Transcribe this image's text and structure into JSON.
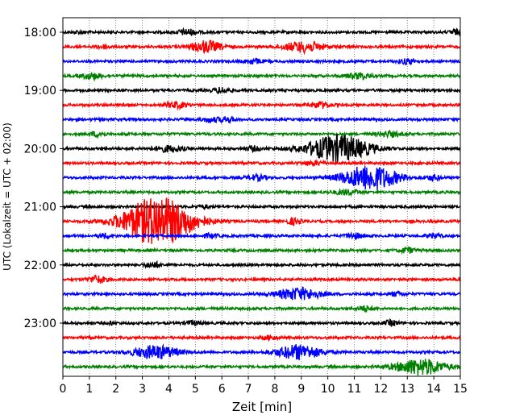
{
  "chart_data": {
    "type": "line",
    "title": "",
    "xlabel": "Zeit  [min]",
    "ylabel": "UTC (Lokalzeit = UTC + 02:00)",
    "xlim": [
      0,
      15
    ],
    "x_ticks": [
      "0",
      "1",
      "2",
      "3",
      "4",
      "5",
      "6",
      "7",
      "8",
      "9",
      "10",
      "11",
      "12",
      "13",
      "14",
      "15"
    ],
    "y_ticks": [
      "18:00",
      "19:00",
      "20:00",
      "21:00",
      "22:00",
      "23:00"
    ],
    "grid": "vertical dotted",
    "trace_interval_min": 15,
    "trace_colors": [
      "#000000",
      "#ff0000",
      "#0000ff",
      "#008000"
    ],
    "traces": [
      {
        "start": "18:00",
        "color": "#000000",
        "bursts": [
          {
            "t": 4.7,
            "amp": 0.4,
            "dur": 0.6
          },
          {
            "t": 14.8,
            "amp": 0.35,
            "dur": 0.3
          },
          {
            "t": 0.6,
            "amp": 0.2,
            "dur": 0.3
          }
        ]
      },
      {
        "start": "18:15",
        "color": "#ff0000",
        "bursts": [
          {
            "t": 5.4,
            "amp": 0.8,
            "dur": 0.9
          },
          {
            "t": 9.1,
            "amp": 0.7,
            "dur": 1.2
          },
          {
            "t": 1.5,
            "amp": 0.25,
            "dur": 0.4
          }
        ]
      },
      {
        "start": "18:30",
        "color": "#0000ff",
        "bursts": [
          {
            "t": 7.2,
            "amp": 0.35,
            "dur": 0.5
          },
          {
            "t": 13.0,
            "amp": 0.35,
            "dur": 0.5
          }
        ]
      },
      {
        "start": "18:45",
        "color": "#008000",
        "bursts": [
          {
            "t": 1.1,
            "amp": 0.4,
            "dur": 0.6
          },
          {
            "t": 11.2,
            "amp": 0.4,
            "dur": 0.7
          }
        ]
      },
      {
        "start": "19:00",
        "color": "#000000",
        "bursts": [
          {
            "t": 6.0,
            "amp": 0.35,
            "dur": 0.5
          }
        ]
      },
      {
        "start": "19:15",
        "color": "#ff0000",
        "bursts": [
          {
            "t": 4.3,
            "amp": 0.4,
            "dur": 0.6
          },
          {
            "t": 9.7,
            "amp": 0.4,
            "dur": 0.6
          }
        ]
      },
      {
        "start": "19:30",
        "color": "#0000ff",
        "bursts": [
          {
            "t": 5.6,
            "amp": 0.3,
            "dur": 0.5
          },
          {
            "t": 6.2,
            "amp": 0.35,
            "dur": 0.4
          }
        ]
      },
      {
        "start": "19:45",
        "color": "#008000",
        "bursts": [
          {
            "t": 1.3,
            "amp": 0.35,
            "dur": 0.4
          },
          {
            "t": 12.3,
            "amp": 0.35,
            "dur": 0.7
          }
        ]
      },
      {
        "start": "20:00",
        "color": "#000000",
        "bursts": [
          {
            "t": 10.4,
            "amp": 1.8,
            "dur": 1.8
          },
          {
            "t": 4.0,
            "amp": 0.4,
            "dur": 0.9
          },
          {
            "t": 7.2,
            "amp": 0.3,
            "dur": 0.4
          }
        ]
      },
      {
        "start": "20:15",
        "color": "#ff0000",
        "bursts": [
          {
            "t": 9.5,
            "amp": 0.25,
            "dur": 0.7
          }
        ]
      },
      {
        "start": "20:30",
        "color": "#0000ff",
        "bursts": [
          {
            "t": 11.6,
            "amp": 1.7,
            "dur": 1.6
          },
          {
            "t": 7.3,
            "amp": 0.35,
            "dur": 0.6
          },
          {
            "t": 14.0,
            "amp": 0.35,
            "dur": 0.4
          }
        ]
      },
      {
        "start": "20:45",
        "color": "#008000",
        "bursts": [
          {
            "t": 10.7,
            "amp": 0.3,
            "dur": 0.8
          }
        ]
      },
      {
        "start": "21:00",
        "color": "#000000",
        "bursts": [
          {
            "t": 5.3,
            "amp": 0.2,
            "dur": 0.4
          }
        ]
      },
      {
        "start": "21:15",
        "color": "#ff0000",
        "bursts": [
          {
            "t": 3.6,
            "amp": 3.4,
            "dur": 2.0
          },
          {
            "t": 8.7,
            "amp": 0.4,
            "dur": 0.4
          }
        ]
      },
      {
        "start": "21:30",
        "color": "#0000ff",
        "bursts": [
          {
            "t": 1.6,
            "amp": 0.3,
            "dur": 0.4
          },
          {
            "t": 5.6,
            "amp": 0.3,
            "dur": 0.4
          },
          {
            "t": 11.0,
            "amp": 0.35,
            "dur": 0.5
          },
          {
            "t": 14.0,
            "amp": 0.3,
            "dur": 0.4
          }
        ]
      },
      {
        "start": "21:45",
        "color": "#008000",
        "bursts": [
          {
            "t": 13.0,
            "amp": 0.35,
            "dur": 0.5
          }
        ]
      },
      {
        "start": "22:00",
        "color": "#000000",
        "bursts": [
          {
            "t": 3.4,
            "amp": 0.35,
            "dur": 0.5
          }
        ]
      },
      {
        "start": "22:15",
        "color": "#ff0000",
        "bursts": [
          {
            "t": 1.3,
            "amp": 0.5,
            "dur": 0.5
          },
          {
            "t": 15.0,
            "amp": 0.3,
            "dur": 0.2
          }
        ]
      },
      {
        "start": "22:30",
        "color": "#0000ff",
        "bursts": [
          {
            "t": 8.9,
            "amp": 0.8,
            "dur": 1.3
          },
          {
            "t": 12.6,
            "amp": 0.25,
            "dur": 0.4
          }
        ]
      },
      {
        "start": "22:45",
        "color": "#008000",
        "bursts": [
          {
            "t": 11.4,
            "amp": 0.35,
            "dur": 0.4
          }
        ]
      },
      {
        "start": "23:00",
        "color": "#000000",
        "bursts": [
          {
            "t": 4.9,
            "amp": 0.3,
            "dur": 0.5
          },
          {
            "t": 12.4,
            "amp": 0.35,
            "dur": 0.4
          },
          {
            "t": 1.8,
            "amp": 0.3,
            "dur": 0.1
          }
        ]
      },
      {
        "start": "23:15",
        "color": "#ff0000",
        "bursts": [
          {
            "t": 7.8,
            "amp": 0.25,
            "dur": 0.5
          }
        ]
      },
      {
        "start": "23:30",
        "color": "#0000ff",
        "bursts": [
          {
            "t": 3.5,
            "amp": 0.9,
            "dur": 1.3
          },
          {
            "t": 8.9,
            "amp": 1.0,
            "dur": 1.3
          }
        ]
      },
      {
        "start": "23:45",
        "color": "#008000",
        "bursts": [
          {
            "t": 13.5,
            "amp": 1.1,
            "dur": 1.4
          }
        ]
      }
    ]
  }
}
